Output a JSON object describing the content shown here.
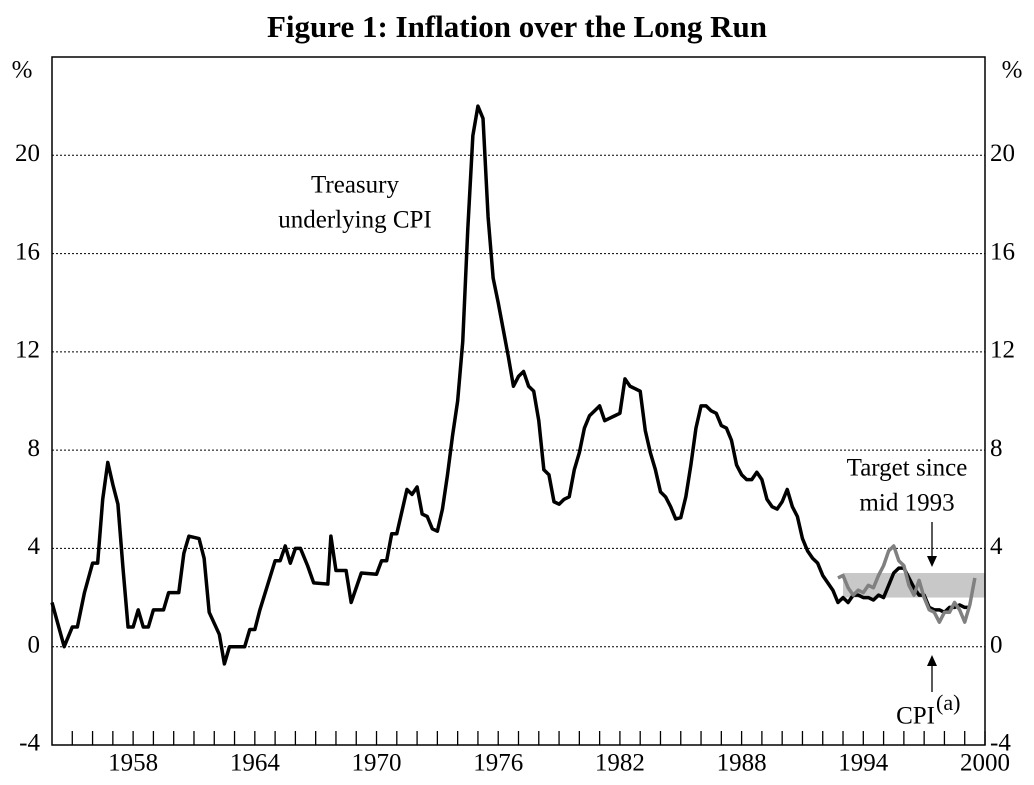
{
  "chart_data": {
    "type": "line",
    "title": "Figure 1: Inflation over the Long Run",
    "y_label": "%",
    "y2_label": "%",
    "xlim": [
      1954,
      2000
    ],
    "xticks": [
      1958,
      1964,
      1970,
      1976,
      1982,
      1988,
      1994,
      2000
    ],
    "xminor_ticks": [
      1955,
      1956,
      1957,
      1959,
      1960,
      1961,
      1962,
      1963,
      1965,
      1966,
      1967,
      1968,
      1969,
      1971,
      1972,
      1973,
      1974,
      1975,
      1977,
      1978,
      1979,
      1980,
      1981,
      1983,
      1984,
      1985,
      1986,
      1987,
      1989,
      1990,
      1991,
      1992,
      1993,
      1995,
      1996,
      1997,
      1998,
      1999
    ],
    "ylim": [
      -4,
      24
    ],
    "yticks": [
      -4,
      0,
      4,
      8,
      12,
      16,
      20
    ],
    "y2lim": [
      -4,
      24
    ],
    "y2ticks": [
      -4,
      0,
      4,
      8,
      12,
      16,
      20
    ],
    "grid": true,
    "target_band": {
      "from": 1993,
      "to": 2000,
      "low": 2,
      "high": 3,
      "color": "#c8c8c8"
    },
    "series": [
      {
        "color": "#000000",
        "x": [
          1954.0,
          1954.6,
          1955.0,
          1955.25,
          1955.6,
          1956.0,
          1956.25,
          1956.5,
          1956.75,
          1957.0,
          1957.25,
          1957.5,
          1957.75,
          1958.0,
          1958.25,
          1958.5,
          1958.75,
          1959.0,
          1959.5,
          1959.75,
          1960.25,
          1960.5,
          1960.75,
          1961.25,
          1961.5,
          1961.75,
          1962.25,
          1962.5,
          1962.75,
          1963.5,
          1963.75,
          1964.0,
          1964.25,
          1965.0,
          1965.25,
          1965.5,
          1965.75,
          1966.0,
          1966.25,
          1966.6,
          1966.9,
          1967.6,
          1967.75,
          1968.0,
          1968.5,
          1968.75,
          1969.25,
          1970.0,
          1970.25,
          1970.5,
          1970.75,
          1971.0,
          1971.25,
          1971.5,
          1971.75,
          1972.0,
          1972.25,
          1972.5,
          1972.75,
          1973.0,
          1973.25,
          1973.5,
          1973.75,
          1974.0,
          1974.25,
          1974.5,
          1974.75,
          1975.0,
          1975.25,
          1975.5,
          1975.75,
          1976.0,
          1976.25,
          1976.5,
          1976.75,
          1977.0,
          1977.25,
          1977.5,
          1977.75,
          1978.0,
          1978.25,
          1978.5,
          1978.75,
          1979.0,
          1979.25,
          1979.5,
          1979.75,
          1980.0,
          1980.25,
          1980.5,
          1980.75,
          1981.0,
          1981.25,
          1981.5,
          1981.75,
          1982.0,
          1982.25,
          1982.5,
          1982.75,
          1983.0,
          1983.25,
          1983.5,
          1983.75,
          1984.0,
          1984.25,
          1984.5,
          1984.75,
          1985.0,
          1985.25,
          1985.5,
          1985.75,
          1986.0,
          1986.25,
          1986.5,
          1986.75,
          1987.0,
          1987.25,
          1987.5,
          1987.75,
          1988.0,
          1988.25,
          1988.5,
          1988.75,
          1989.0,
          1989.25,
          1989.5,
          1989.75,
          1990.0,
          1990.25,
          1990.5,
          1990.75,
          1991.0,
          1991.25,
          1991.5,
          1991.75,
          1992.0,
          1992.25,
          1992.5,
          1992.75,
          1993.0,
          1993.25,
          1993.5,
          1993.75,
          1994.0,
          1994.25,
          1994.5,
          1994.75,
          1995.0,
          1995.25,
          1995.5,
          1995.75,
          1996.0,
          1996.25,
          1996.5,
          1996.75,
          1997.0,
          1997.25,
          1997.5,
          1997.75,
          1998.0,
          1998.25,
          1998.5,
          1998.75,
          1999.0,
          1999.25
        ],
        "values": [
          1.8,
          0.0,
          0.8,
          0.8,
          2.2,
          3.4,
          3.4,
          6.0,
          7.5,
          6.6,
          5.8,
          3.2,
          0.8,
          0.8,
          1.5,
          0.8,
          0.8,
          1.5,
          1.5,
          2.2,
          2.2,
          3.8,
          4.5,
          4.4,
          3.6,
          1.4,
          0.5,
          -0.7,
          0.0,
          0.0,
          0.7,
          0.7,
          1.5,
          3.5,
          3.5,
          4.1,
          3.4,
          4.0,
          4.0,
          3.3,
          2.6,
          2.55,
          4.5,
          3.1,
          3.1,
          1.8,
          3.0,
          2.95,
          3.5,
          3.5,
          4.6,
          4.6,
          5.5,
          6.4,
          6.2,
          6.5,
          5.4,
          5.3,
          4.8,
          4.7,
          5.6,
          7.0,
          8.6,
          10.0,
          12.4,
          17.0,
          20.8,
          22.0,
          21.5,
          17.5,
          15.0,
          14.0,
          12.9,
          11.8,
          10.6,
          11.0,
          11.2,
          10.6,
          10.4,
          9.2,
          7.2,
          7.0,
          5.9,
          5.8,
          6.0,
          6.1,
          7.2,
          7.9,
          8.9,
          9.4,
          9.6,
          9.8,
          9.2,
          9.3,
          9.4,
          9.5,
          10.9,
          10.6,
          10.5,
          10.4,
          8.8,
          7.9,
          7.2,
          6.3,
          6.1,
          5.7,
          5.2,
          5.25,
          6.1,
          7.4,
          8.9,
          9.8,
          9.8,
          9.6,
          9.5,
          9.0,
          8.9,
          8.4,
          7.4,
          7.0,
          6.8,
          6.8,
          7.1,
          6.8,
          6.0,
          5.7,
          5.6,
          5.9,
          6.4,
          5.7,
          5.3,
          4.4,
          3.9,
          3.6,
          3.4,
          2.9,
          2.6,
          2.3,
          1.8,
          2.0,
          1.8,
          2.1,
          2.1,
          2.0,
          2.0,
          1.9,
          2.1,
          2.0,
          2.5,
          3.0,
          3.2,
          3.2,
          2.8,
          2.4,
          2.1,
          2.1,
          1.6,
          1.5,
          1.5,
          1.4,
          1.6,
          1.6,
          1.7,
          1.6,
          1.6
        ]
      },
      {
        "color": "#808080",
        "x": [
          1992.75,
          1993.0,
          1993.25,
          1993.5,
          1993.75,
          1994.0,
          1994.25,
          1994.5,
          1994.75,
          1995.0,
          1995.25,
          1995.5,
          1995.75,
          1996.0,
          1996.25,
          1996.5,
          1996.75,
          1997.0,
          1997.25,
          1997.5,
          1997.75,
          1998.0,
          1998.25,
          1998.5,
          1998.75,
          1999.0,
          1999.25,
          1999.5
        ],
        "values": [
          2.8,
          2.9,
          2.4,
          2.1,
          2.3,
          2.2,
          2.5,
          2.4,
          2.9,
          3.3,
          3.9,
          4.1,
          3.5,
          3.3,
          2.5,
          2.1,
          2.7,
          2.0,
          1.5,
          1.4,
          1.0,
          1.4,
          1.4,
          1.8,
          1.5,
          1.0,
          1.7,
          2.8
        ]
      }
    ],
    "annotations": {
      "treasury_1": "Treasury",
      "treasury_2": "underlying CPI",
      "target_1": "Target since",
      "target_2": "mid 1993",
      "cpi": "CPI",
      "cpi_note": "(a)"
    }
  }
}
